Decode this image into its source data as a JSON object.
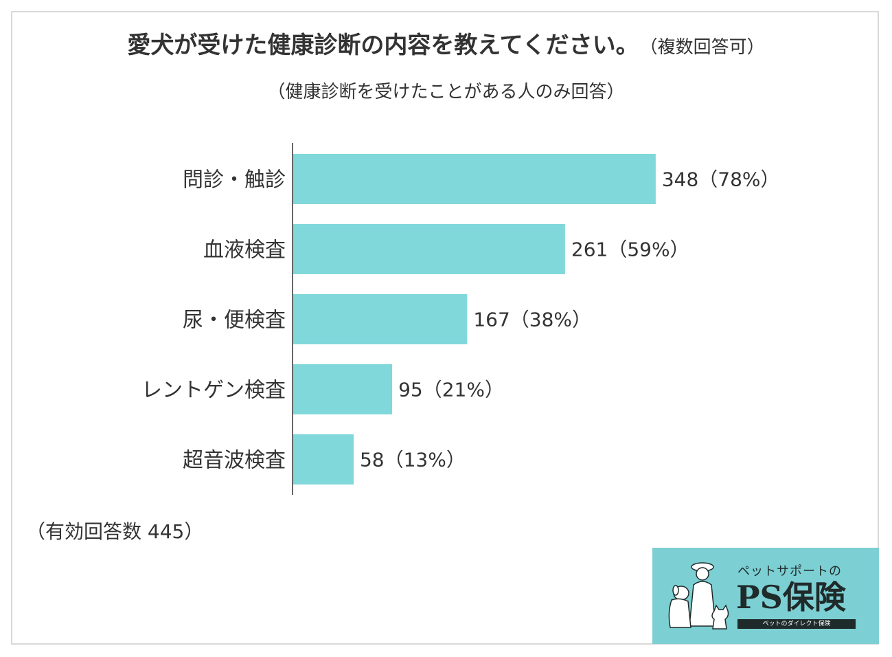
{
  "title": "愛犬が受けた健康診断の内容を教えてください。",
  "title_note": "（複数回答可）",
  "subtitle": "（健康診断を受けたことがある人のみ回答）",
  "footnote": "（有効回答数 445）",
  "colors": {
    "bar": "#80d8da",
    "axis": "#333333",
    "logo_bg": "#7ccfd3"
  },
  "chart_data": {
    "type": "bar",
    "orientation": "horizontal",
    "categories": [
      "問診・触診",
      "血液検査",
      "尿・便検査",
      "レントゲン検査",
      "超音波検査"
    ],
    "values": [
      348,
      261,
      167,
      95,
      58
    ],
    "value_labels": [
      "348（78%）",
      "261（59%）",
      "167（38%）",
      "95（21%）",
      "58（13%）"
    ],
    "xlim": [
      0,
      445
    ],
    "grid": false
  },
  "logo": {
    "top_text": "ペットサポートの",
    "main_text": "PS保険",
    "tagline": "ペットのダイレクト保険"
  }
}
